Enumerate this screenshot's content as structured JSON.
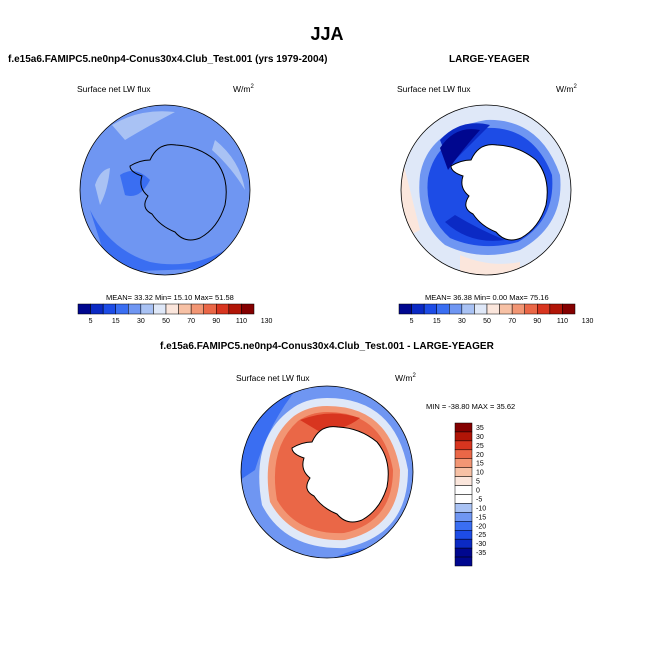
{
  "page_title": "JJA",
  "palette": {
    "c0": "#00078f",
    "c1": "#0b2ac4",
    "c2": "#1d4ce6",
    "c3": "#3a6ef2",
    "c4": "#6f96f2",
    "c5": "#a9c2f4",
    "c6": "#dfe8f8",
    "c7": "#fbe6dc",
    "c8": "#f7c1a5",
    "c9": "#f29674",
    "c10": "#ea6747",
    "c11": "#d8351f",
    "c12": "#b11507",
    "c13": "#840000",
    "land": "#ffffff",
    "coast": "#000000"
  },
  "chart_data": [
    {
      "type": "heatmap",
      "projection": "south-polar-stereographic",
      "title": "f.e15a6.FAMIPC5.ne0np4-Conus30x4.Club_Test.001 (yrs 1979-2004)",
      "field_label": "Surface net LW flux",
      "units": "W/m",
      "units_sup": "2",
      "stats_text": "MEAN= 33.32  Min= 15.10  Max= 51.58",
      "stats": {
        "mean": 33.32,
        "min": 15.1,
        "max": 51.58
      },
      "colorbar_levels": [
        "5",
        "15",
        "30",
        "50",
        "70",
        "90",
        "110",
        "130"
      ]
    },
    {
      "type": "heatmap",
      "projection": "south-polar-stereographic",
      "title": "LARGE-YEAGER",
      "field_label": "Surface net LW flux",
      "units": "W/m",
      "units_sup": "2",
      "stats_text": "MEAN= 36.38  Min=  0.00  Max= 75.16",
      "stats": {
        "mean": 36.38,
        "min": 0.0,
        "max": 75.16
      },
      "colorbar_levels": [
        "5",
        "15",
        "30",
        "50",
        "70",
        "90",
        "110",
        "130"
      ]
    },
    {
      "type": "heatmap",
      "projection": "south-polar-stereographic",
      "title": "f.e15a6.FAMIPC5.ne0np4-Conus30x4.Club_Test.001 - LARGE-YEAGER",
      "field_label": "Surface net LW flux",
      "units": "W/m",
      "units_sup": "2",
      "stats_text": "MIN = -38.80  MAX =  35.62",
      "stats": {
        "min": -38.8,
        "max": 35.62
      },
      "colorbar_levels": [
        "35",
        "30",
        "25",
        "20",
        "15",
        "10",
        "5",
        "0",
        "-5",
        "-10",
        "-15",
        "-20",
        "-25",
        "-30",
        "-35"
      ]
    }
  ]
}
